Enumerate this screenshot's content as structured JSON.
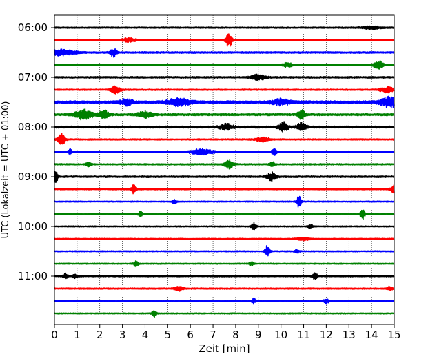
{
  "chart_data": {
    "type": "line",
    "title": "",
    "xlabel": "Zeit  [min]",
    "ylabel": "UTC (Lokalzeit = UTC + 01:00)",
    "xlim": [
      0,
      15
    ],
    "x_ticks": [
      "0",
      "1",
      "2",
      "3",
      "4",
      "5",
      "6",
      "7",
      "8",
      "9",
      "10",
      "11",
      "12",
      "13",
      "14",
      "15"
    ],
    "y_ticks": [
      "06:00",
      "07:00",
      "08:00",
      "09:00",
      "10:00",
      "11:00"
    ],
    "grid": "vertical dotted",
    "line_colors": [
      "#000000",
      "#ff0000",
      "#0000ff",
      "#008000"
    ],
    "series": [
      {
        "time": "06:00",
        "color": "#000000",
        "base_amplitude": 1.0,
        "events": [
          [
            14.0,
            2.0,
            0.4
          ]
        ]
      },
      {
        "time": "06:15",
        "color": "#ff0000",
        "base_amplitude": 1.0,
        "events": [
          [
            7.7,
            10.0,
            0.15
          ],
          [
            3.3,
            3.0,
            0.3
          ]
        ]
      },
      {
        "time": "06:30",
        "color": "#0000ff",
        "base_amplitude": 1.2,
        "events": [
          [
            0.3,
            4.0,
            0.6
          ],
          [
            2.6,
            6.0,
            0.15
          ]
        ]
      },
      {
        "time": "06:45",
        "color": "#008000",
        "base_amplitude": 1.0,
        "events": [
          [
            14.3,
            6.0,
            0.2
          ],
          [
            10.3,
            3.0,
            0.2
          ]
        ]
      },
      {
        "time": "07:00",
        "color": "#000000",
        "base_amplitude": 1.2,
        "events": [
          [
            9.0,
            4.0,
            0.3
          ]
        ]
      },
      {
        "time": "07:15",
        "color": "#ff0000",
        "base_amplitude": 1.0,
        "events": [
          [
            2.7,
            6.0,
            0.2
          ],
          [
            14.7,
            4.0,
            0.3
          ]
        ]
      },
      {
        "time": "07:30",
        "color": "#0000ff",
        "base_amplitude": 2.0,
        "events": [
          [
            5.5,
            5.0,
            0.5
          ],
          [
            14.8,
            7.0,
            0.4
          ],
          [
            3.2,
            4.0,
            0.3
          ],
          [
            10.0,
            4.0,
            0.4
          ]
        ]
      },
      {
        "time": "07:45",
        "color": "#008000",
        "base_amplitude": 1.5,
        "events": [
          [
            1.3,
            7.0,
            0.4
          ],
          [
            2.2,
            6.0,
            0.2
          ],
          [
            10.9,
            8.0,
            0.15
          ],
          [
            4.0,
            5.0,
            0.3
          ]
        ]
      },
      {
        "time": "08:00",
        "color": "#000000",
        "base_amplitude": 1.5,
        "events": [
          [
            10.1,
            7.0,
            0.2
          ],
          [
            10.9,
            6.0,
            0.2
          ],
          [
            7.6,
            4.0,
            0.3
          ]
        ]
      },
      {
        "time": "08:15",
        "color": "#ff0000",
        "base_amplitude": 1.0,
        "events": [
          [
            0.3,
            9.0,
            0.15
          ],
          [
            9.2,
            3.0,
            0.3
          ]
        ]
      },
      {
        "time": "08:30",
        "color": "#0000ff",
        "base_amplitude": 1.0,
        "events": [
          [
            6.5,
            4.0,
            0.5
          ],
          [
            9.7,
            5.0,
            0.1
          ],
          [
            0.7,
            4.0,
            0.1
          ]
        ]
      },
      {
        "time": "08:45",
        "color": "#008000",
        "base_amplitude": 1.0,
        "events": [
          [
            7.7,
            6.0,
            0.2
          ],
          [
            1.5,
            4.0,
            0.1
          ],
          [
            9.6,
            4.0,
            0.1
          ]
        ]
      },
      {
        "time": "09:00",
        "color": "#000000",
        "base_amplitude": 1.2,
        "events": [
          [
            0.05,
            8.0,
            0.1
          ],
          [
            9.6,
            6.0,
            0.2
          ]
        ]
      },
      {
        "time": "09:15",
        "color": "#ff0000",
        "base_amplitude": 1.0,
        "events": [
          [
            3.5,
            7.0,
            0.1
          ],
          [
            15.0,
            6.0,
            0.15
          ]
        ]
      },
      {
        "time": "09:30",
        "color": "#0000ff",
        "base_amplitude": 0.8,
        "events": [
          [
            10.8,
            9.0,
            0.1
          ],
          [
            5.3,
            3.0,
            0.1
          ]
        ]
      },
      {
        "time": "09:45",
        "color": "#008000",
        "base_amplitude": 0.8,
        "events": [
          [
            13.6,
            8.0,
            0.1
          ],
          [
            3.8,
            4.0,
            0.1
          ]
        ]
      },
      {
        "time": "10:00",
        "color": "#000000",
        "base_amplitude": 0.8,
        "events": [
          [
            8.8,
            6.0,
            0.1
          ],
          [
            11.3,
            3.0,
            0.1
          ]
        ]
      },
      {
        "time": "10:15",
        "color": "#ff0000",
        "base_amplitude": 0.8,
        "events": [
          [
            11.0,
            2.0,
            0.3
          ]
        ]
      },
      {
        "time": "10:30",
        "color": "#0000ff",
        "base_amplitude": 0.8,
        "events": [
          [
            9.4,
            9.0,
            0.1
          ],
          [
            10.7,
            3.0,
            0.1
          ]
        ]
      },
      {
        "time": "10:45",
        "color": "#008000",
        "base_amplitude": 0.8,
        "events": [
          [
            3.6,
            4.0,
            0.1
          ],
          [
            8.7,
            3.0,
            0.1
          ]
        ]
      },
      {
        "time": "11:00",
        "color": "#000000",
        "base_amplitude": 1.0,
        "events": [
          [
            11.5,
            6.0,
            0.1
          ],
          [
            0.5,
            4.0,
            0.1
          ],
          [
            0.9,
            3.0,
            0.1
          ]
        ]
      },
      {
        "time": "11:15",
        "color": "#ff0000",
        "base_amplitude": 1.0,
        "events": [
          [
            5.5,
            3.0,
            0.2
          ],
          [
            14.8,
            3.0,
            0.1
          ]
        ]
      },
      {
        "time": "11:30",
        "color": "#0000ff",
        "base_amplitude": 0.8,
        "events": [
          [
            8.8,
            4.0,
            0.1
          ],
          [
            12.0,
            4.0,
            0.1
          ]
        ]
      },
      {
        "time": "11:45",
        "color": "#008000",
        "base_amplitude": 0.8,
        "events": [
          [
            4.4,
            5.0,
            0.1
          ]
        ]
      }
    ]
  }
}
